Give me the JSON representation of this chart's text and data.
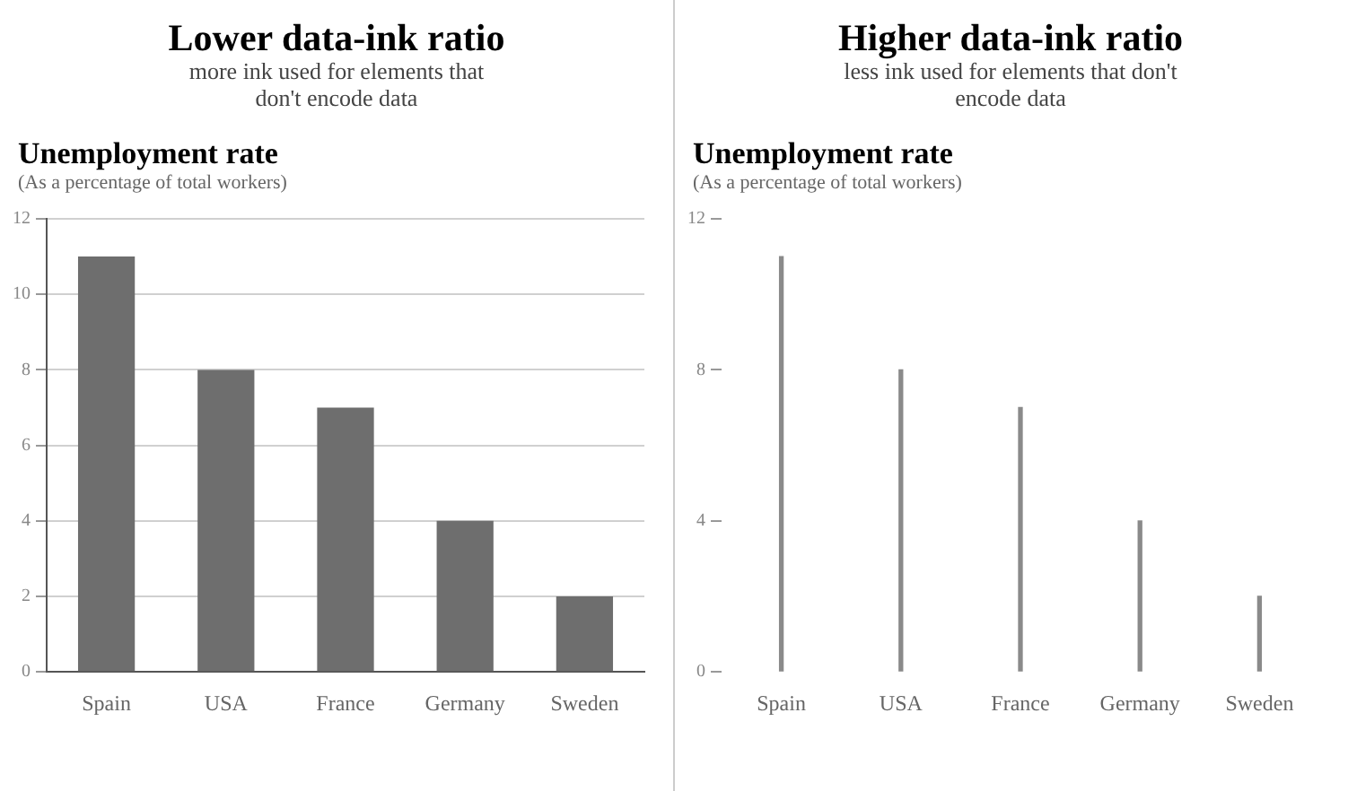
{
  "chart_data": [
    {
      "type": "bar",
      "title": "Unemployment rate",
      "subtitle": "(As a percentage of total workers)",
      "annotations": [
        "Lower data-ink ratio",
        "more ink used for elements that don't encode data"
      ],
      "categories": [
        "Spain",
        "USA",
        "France",
        "Germany",
        "Sweden"
      ],
      "values": [
        11,
        8,
        7,
        4,
        2
      ],
      "color": "#6e6e6e",
      "ylim": [
        0,
        12
      ],
      "yticks": [
        0,
        2,
        4,
        6,
        8,
        10,
        12
      ],
      "grid": "y"
    },
    {
      "type": "bar",
      "title": "Unemployment rate",
      "subtitle": "(As a percentage of total workers)",
      "annotations": [
        "Higher data-ink ratio",
        "less ink used for elements that don't encode data"
      ],
      "categories": [
        "Spain",
        "USA",
        "France",
        "Germany",
        "Sweden"
      ],
      "values": [
        11,
        8,
        7,
        4,
        2
      ],
      "color": "#8a8a8a",
      "ylim": [
        0,
        12
      ],
      "yticks": [
        0,
        4,
        8,
        12
      ],
      "grid": false
    }
  ]
}
